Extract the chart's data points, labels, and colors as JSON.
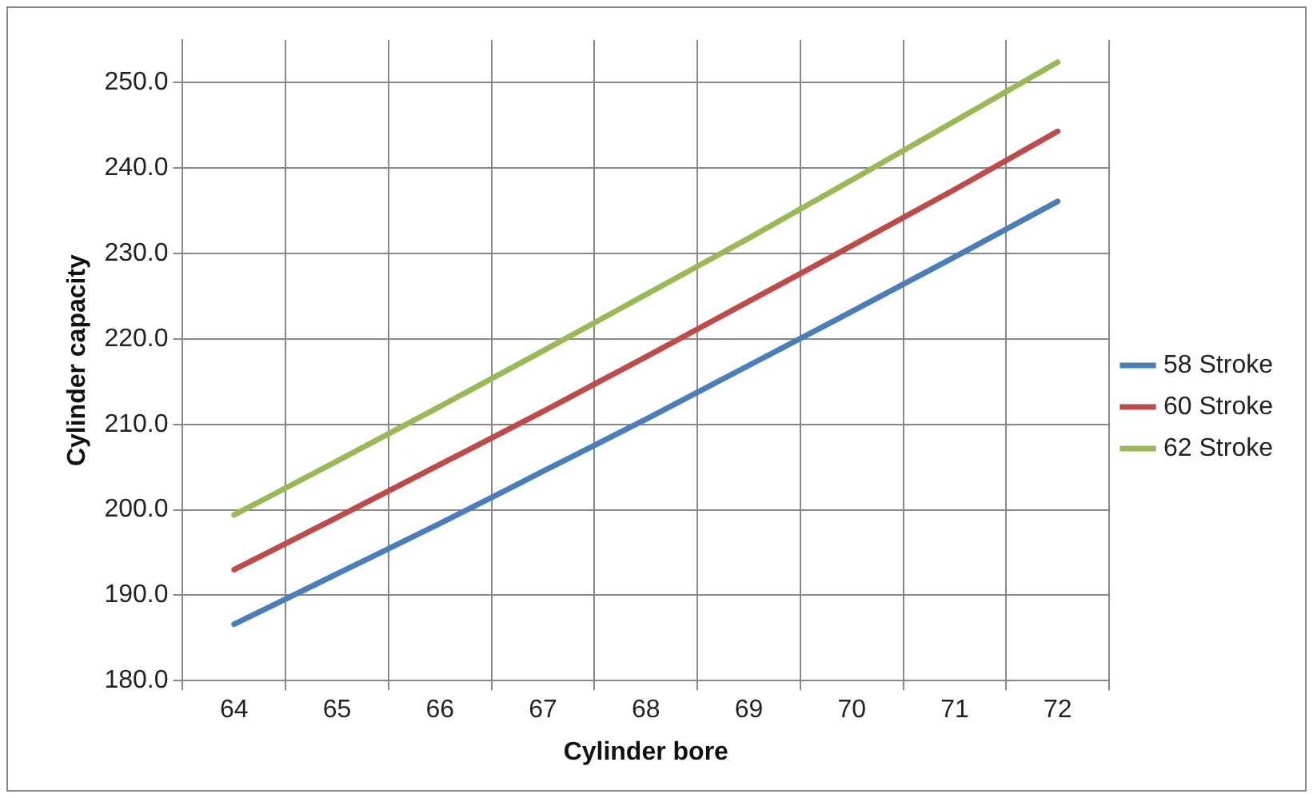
{
  "chart_data": {
    "type": "line",
    "xlabel": "Cylinder bore",
    "ylabel": "Cylinder capacity",
    "categories": [
      "64",
      "65",
      "66",
      "67",
      "68",
      "69",
      "70",
      "71",
      "72"
    ],
    "series": [
      {
        "name": "58 Stroke",
        "color": "#4a7ebb",
        "values": [
          186.6,
          192.5,
          198.4,
          204.5,
          210.6,
          216.9,
          223.2,
          229.6,
          236.1
        ]
      },
      {
        "name": "60 Stroke",
        "color": "#be4b48",
        "values": [
          193.0,
          199.1,
          205.3,
          211.5,
          217.9,
          224.4,
          230.9,
          237.5,
          244.3
        ]
      },
      {
        "name": "62 Stroke",
        "color": "#98b954",
        "values": [
          199.4,
          205.7,
          212.1,
          218.6,
          225.2,
          231.8,
          238.6,
          245.5,
          252.4
        ]
      }
    ],
    "ylim": [
      180,
      255
    ],
    "yticks": [
      {
        "value": 180,
        "label": "180.0"
      },
      {
        "value": 190,
        "label": "190.0"
      },
      {
        "value": 200,
        "label": "200.0"
      },
      {
        "value": 210,
        "label": "210.0"
      },
      {
        "value": 220,
        "label": "220.0"
      },
      {
        "value": 230,
        "label": "230.0"
      },
      {
        "value": 240,
        "label": "240.0"
      },
      {
        "value": 250,
        "label": "250.0"
      }
    ],
    "grid": true,
    "legend": "right",
    "marker": "none",
    "line_style": "solid"
  }
}
